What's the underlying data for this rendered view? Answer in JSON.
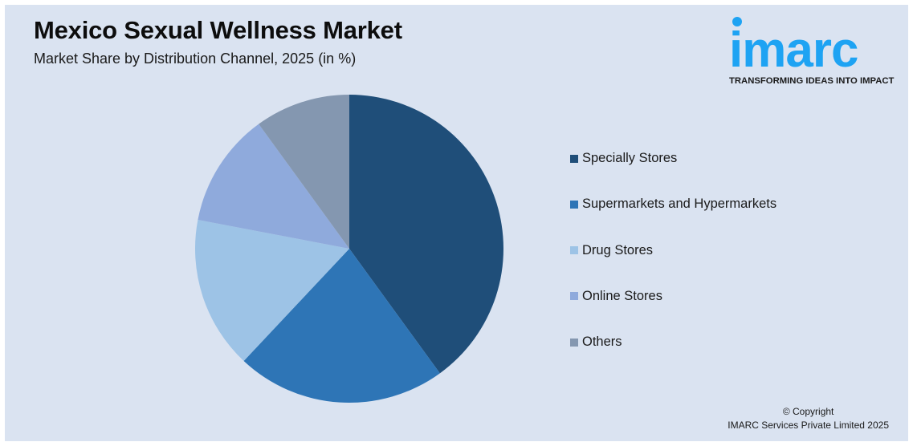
{
  "header": {
    "title": "Mexico Sexual Wellness Market",
    "subtitle": "Market Share by Distribution Channel, 2025 (in %)"
  },
  "logo": {
    "wordmark": "imarc",
    "tagline": "TRANSFORMING IDEAS INTO IMPACT",
    "color": "#1ea3f3"
  },
  "footer": {
    "copyright": "© Copyright",
    "company": "IMARC Services Private Limited 2025"
  },
  "chart_data": {
    "type": "pie",
    "title": "Mexico Sexual Wellness Market",
    "subtitle": "Market Share by Distribution Channel, 2025 (in %)",
    "categories": [
      "Specially Stores",
      "Supermarkets and Hypermarkets",
      "Drug Stores",
      "Online Stores",
      "Others"
    ],
    "values": [
      40,
      22,
      16,
      12,
      10
    ],
    "colors": [
      "#1f4e79",
      "#2e75b6",
      "#9dc3e6",
      "#8faadc",
      "#8497b0"
    ],
    "start_angle_deg": 0,
    "direction": "clockwise",
    "legend_position": "right",
    "data_labels": false
  }
}
